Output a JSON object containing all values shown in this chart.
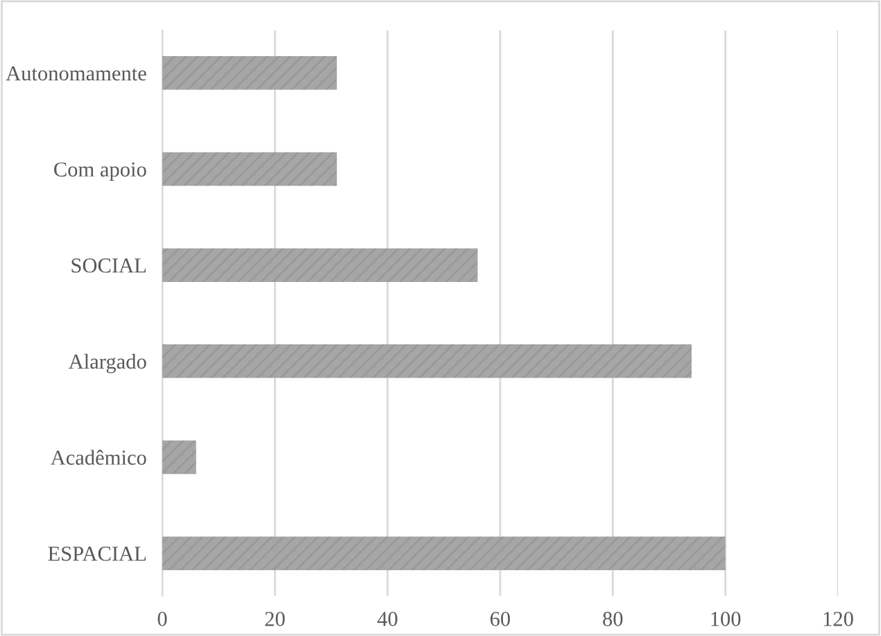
{
  "chart_data": {
    "type": "bar",
    "orientation": "horizontal",
    "categories": [
      "Autonomamente",
      "Com apoio",
      "SOCIAL",
      "Alargado",
      "Acadêmico",
      "ESPACIAL"
    ],
    "values": [
      31,
      31,
      56,
      94,
      6,
      100
    ],
    "color": "#a6a6a6",
    "xlim": [
      0,
      120
    ],
    "xticks": [
      0,
      20,
      40,
      60,
      80,
      100,
      120
    ],
    "grid": "x",
    "legend": false
  }
}
